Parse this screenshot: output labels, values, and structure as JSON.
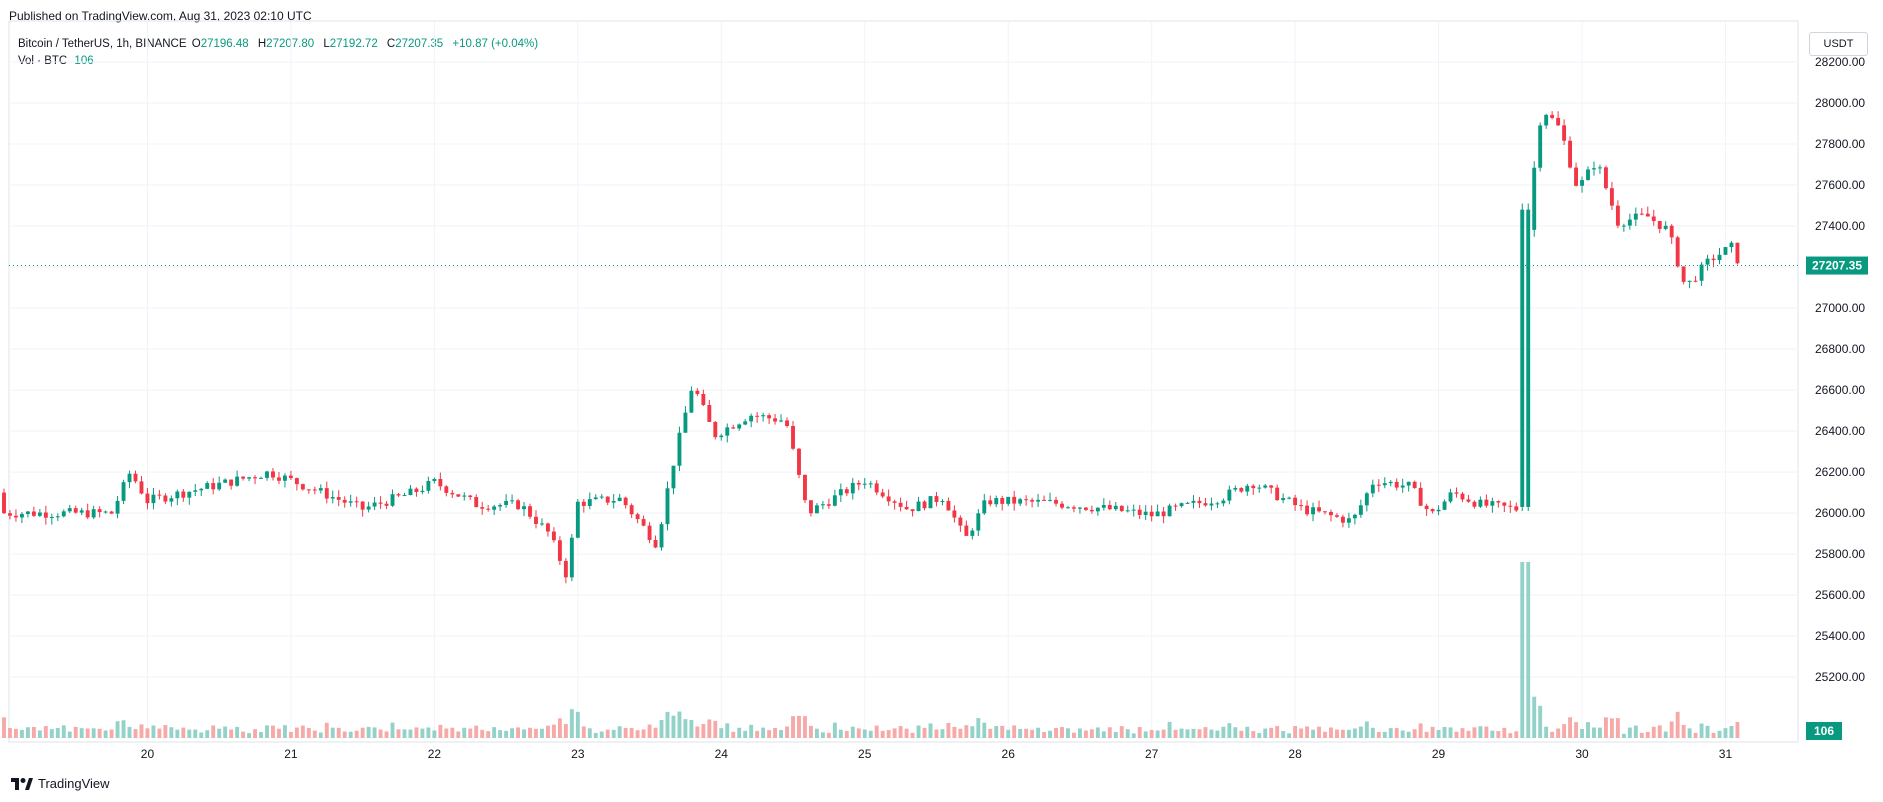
{
  "header": {
    "published": "Published on TradingView.com, Aug 31, 2023 02:10 UTC"
  },
  "legend": {
    "symbol": "Bitcoin / TetherUS, 1h, BINANCE",
    "open_label": "O",
    "open": "27196.48",
    "high_label": "H",
    "high": "27207.80",
    "low_label": "L",
    "low": "27192.72",
    "close_label": "C",
    "close": "27207.35",
    "change": "+10.87 (+0.04%)",
    "vol_label": "Vol · BTC",
    "vol_value": "106"
  },
  "currency_button": "USDT",
  "footer": {
    "logo_text": "TradingView"
  },
  "colors": {
    "up": "#089981",
    "down": "#f23645",
    "up_volume": "#92d2c8",
    "down_volume": "#f7a9a8",
    "grid": "#f0f3fa"
  },
  "chart_data": {
    "type": "candlestick",
    "x_ticks": [
      "20",
      "21",
      "22",
      "23",
      "24",
      "25",
      "26",
      "27",
      "28",
      "29",
      "30",
      "31"
    ],
    "y_ticks": [
      "25200.00",
      "25400.00",
      "25600.00",
      "25800.00",
      "26000.00",
      "26200.00",
      "26400.00",
      "26600.00",
      "26800.00",
      "27000.00",
      "27200.00",
      "27400.00",
      "27600.00",
      "27800.00",
      "28000.00",
      "28200.00"
    ],
    "ylim": [
      25030,
      28400
    ],
    "last_price_label": "27207.35",
    "last_price": 27207.35,
    "last_volume_label": "106",
    "grid": true,
    "series": [
      {
        "day": 19.75,
        "close": 26000
      },
      {
        "day": 19.88,
        "close": 26200
      },
      {
        "day": 20.0,
        "close": 26060
      },
      {
        "day": 20.5,
        "close": 26140
      },
      {
        "day": 20.85,
        "close": 26200
      },
      {
        "day": 21.0,
        "close": 26160
      },
      {
        "day": 21.5,
        "close": 26020
      },
      {
        "day": 21.85,
        "close": 26100
      },
      {
        "day": 22.0,
        "close": 26150
      },
      {
        "day": 22.3,
        "close": 26040
      },
      {
        "day": 22.6,
        "close": 26040
      },
      {
        "day": 22.8,
        "close": 25900
      },
      {
        "day": 22.92,
        "close": 25700
      },
      {
        "day": 23.0,
        "close": 26050
      },
      {
        "day": 23.3,
        "close": 26070
      },
      {
        "day": 23.55,
        "close": 25850
      },
      {
        "day": 23.65,
        "close": 26200
      },
      {
        "day": 23.8,
        "close": 26630
      },
      {
        "day": 23.95,
        "close": 26380
      },
      {
        "day": 24.2,
        "close": 26480
      },
      {
        "day": 24.45,
        "close": 26450
      },
      {
        "day": 24.6,
        "close": 26000
      },
      {
        "day": 25.0,
        "close": 26160
      },
      {
        "day": 25.3,
        "close": 26020
      },
      {
        "day": 25.55,
        "close": 26080
      },
      {
        "day": 25.7,
        "close": 25870
      },
      {
        "day": 25.85,
        "close": 26060
      },
      {
        "day": 26.3,
        "close": 26050
      },
      {
        "day": 26.7,
        "close": 26020
      },
      {
        "day": 27.0,
        "close": 25990
      },
      {
        "day": 27.5,
        "close": 26080
      },
      {
        "day": 27.7,
        "close": 26150
      },
      {
        "day": 28.05,
        "close": 26020
      },
      {
        "day": 28.4,
        "close": 25960
      },
      {
        "day": 28.55,
        "close": 26160
      },
      {
        "day": 28.8,
        "close": 26130
      },
      {
        "day": 28.95,
        "close": 25990
      },
      {
        "day": 29.1,
        "close": 26100
      },
      {
        "day": 29.3,
        "close": 26040
      },
      {
        "day": 29.55,
        "close": 26020
      },
      {
        "day": 29.63,
        "close": 27480
      },
      {
        "day": 29.72,
        "close": 27980
      },
      {
        "day": 29.85,
        "close": 27870
      },
      {
        "day": 29.97,
        "close": 27580
      },
      {
        "day": 30.1,
        "close": 27720
      },
      {
        "day": 30.25,
        "close": 27420
      },
      {
        "day": 30.45,
        "close": 27450
      },
      {
        "day": 30.6,
        "close": 27380
      },
      {
        "day": 30.72,
        "close": 27100
      },
      {
        "day": 30.9,
        "close": 27240
      },
      {
        "day": 31.05,
        "close": 27300
      },
      {
        "day": 31.1,
        "close": 27207.35
      }
    ]
  }
}
